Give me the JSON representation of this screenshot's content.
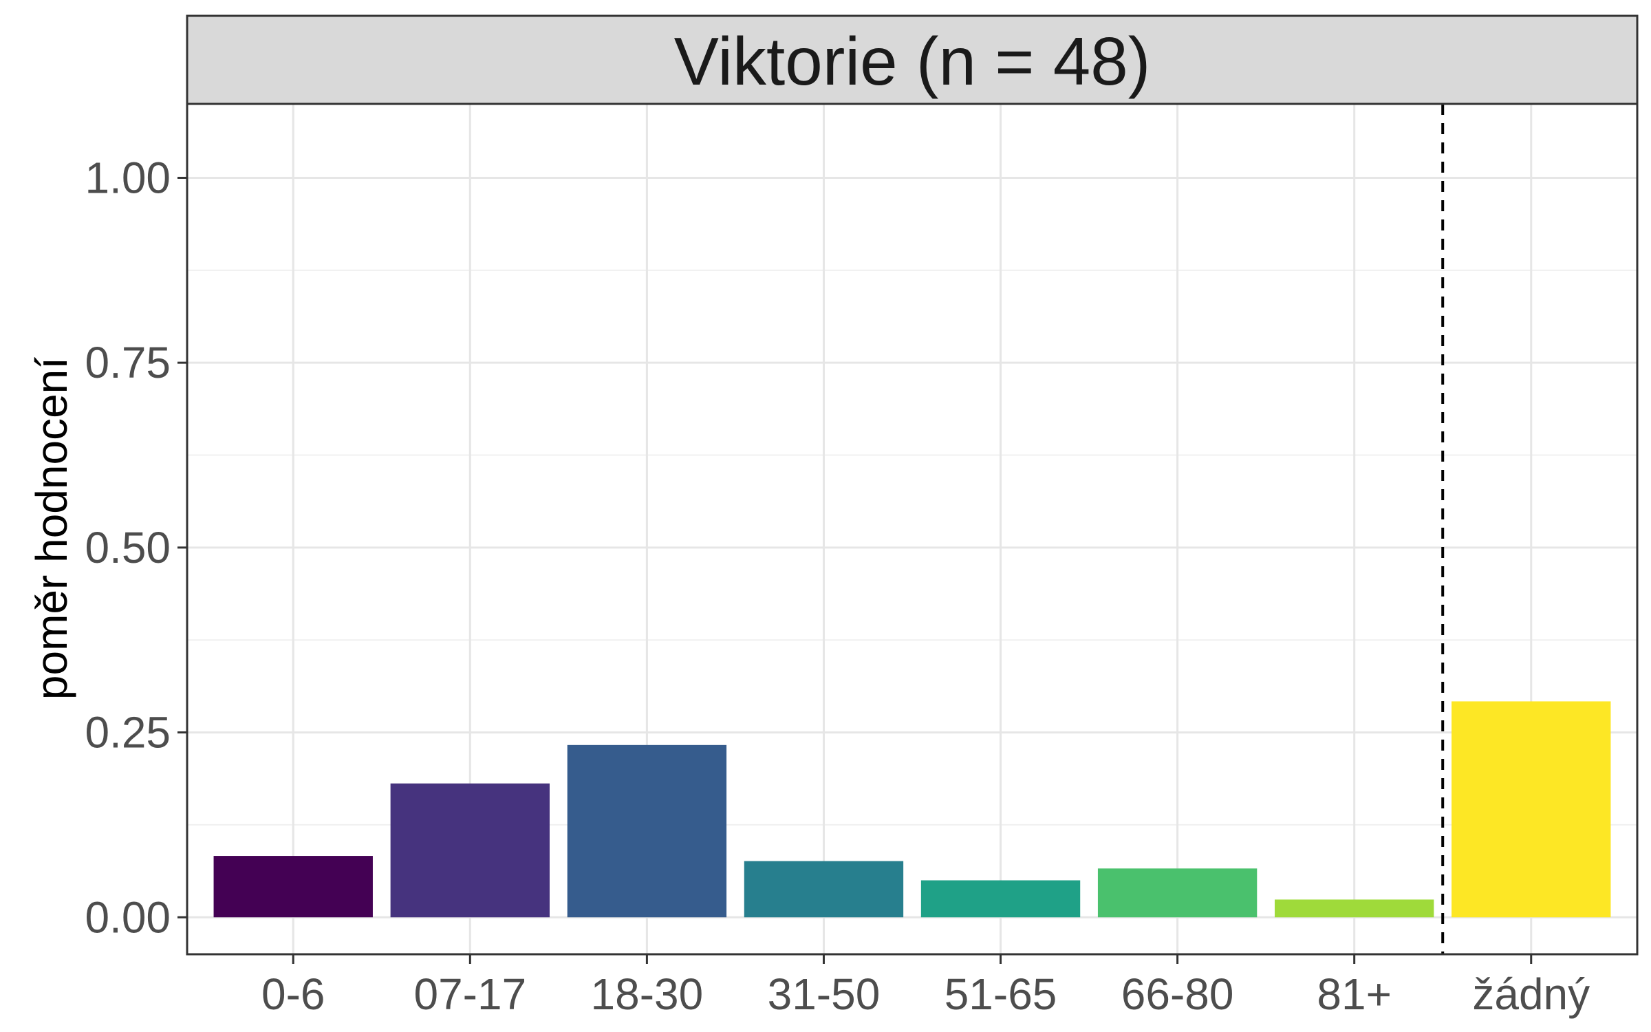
{
  "chart_data": {
    "type": "bar",
    "title": "Viktorie (n = 48)",
    "xlabel": "",
    "ylabel": "poměr hodnocení",
    "categories": [
      "0-6",
      "07-17",
      "18-30",
      "31-50",
      "51-65",
      "66-80",
      "81+",
      "žádný"
    ],
    "values": [
      0.083,
      0.181,
      0.233,
      0.076,
      0.05,
      0.066,
      0.024,
      0.292
    ],
    "colors": [
      "#440154",
      "#46337E",
      "#365C8D",
      "#277F8E",
      "#1FA187",
      "#4AC16D",
      "#9FDA3A",
      "#FDE725"
    ],
    "ylim": [
      -0.05,
      1.1
    ],
    "yticks": [
      "0.00",
      "0.25",
      "0.50",
      "0.75",
      "1.00"
    ],
    "separator_after_category": "81+",
    "separator_style": "dashed",
    "grid": true
  }
}
